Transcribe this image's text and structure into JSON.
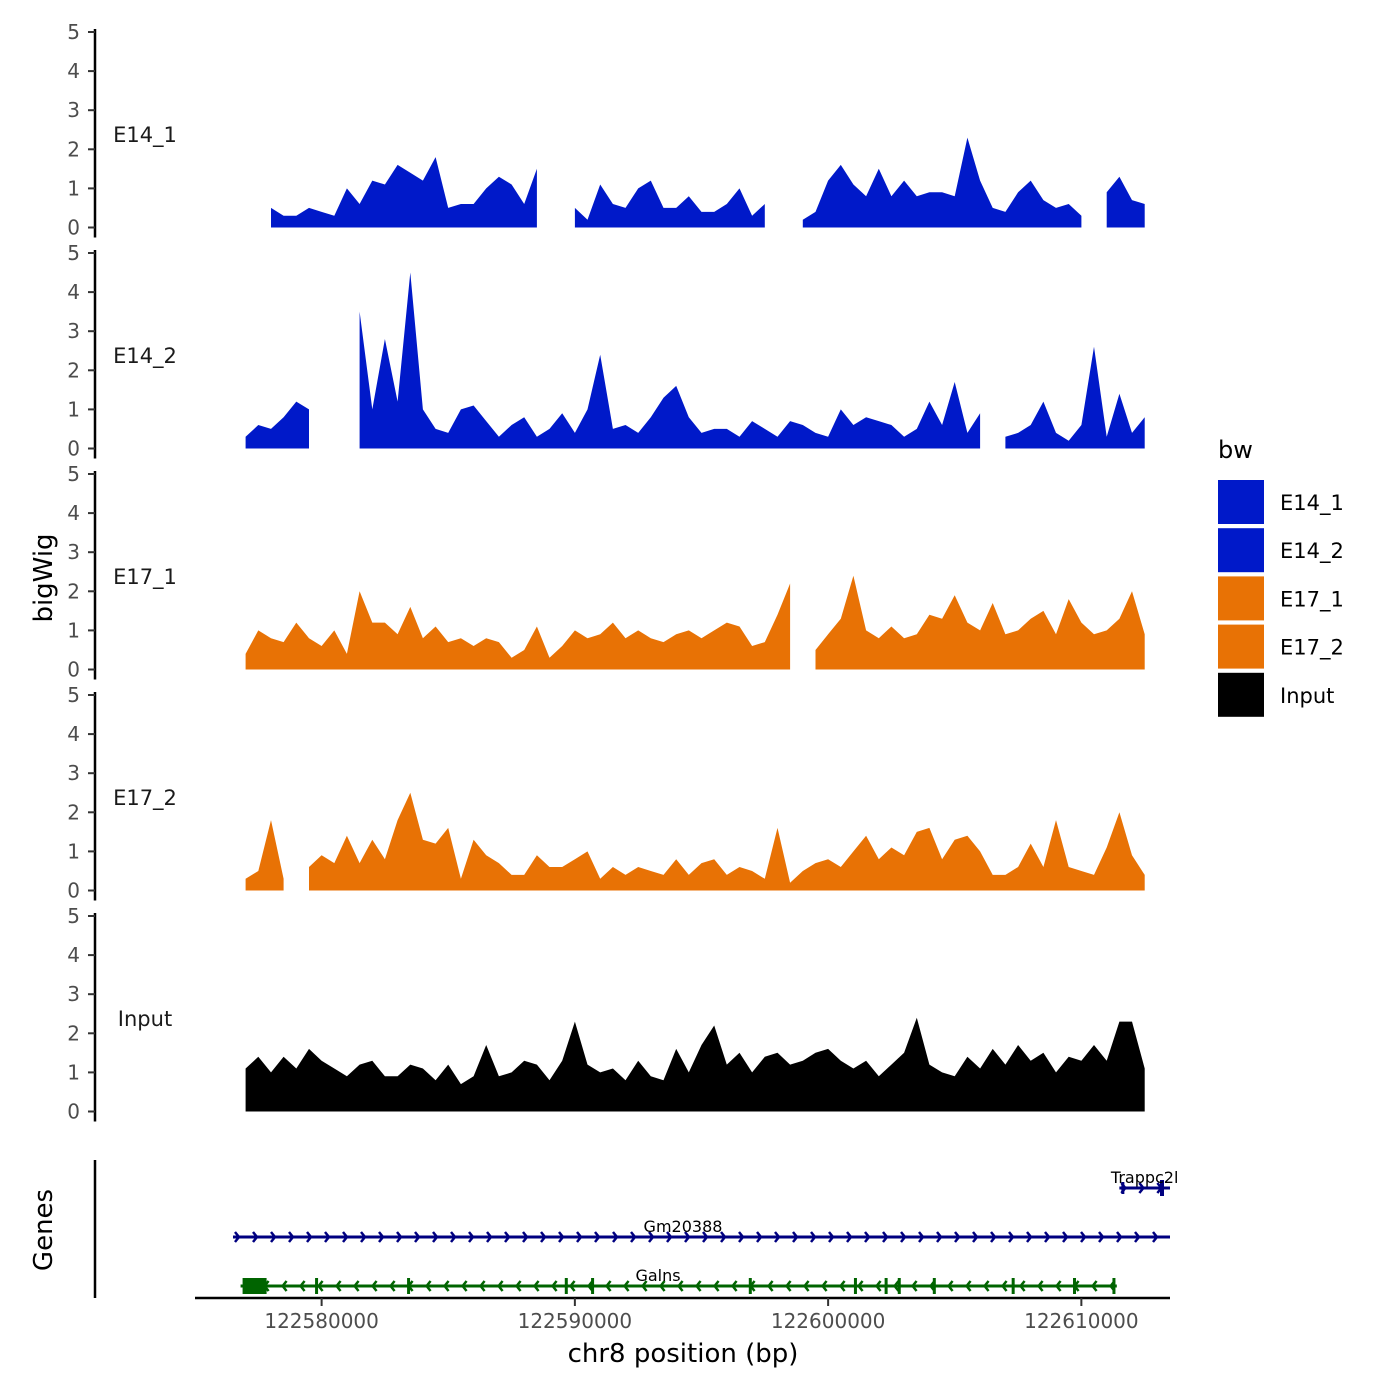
{
  "chart_data": {
    "type": "area",
    "xlabel": "chr8 position (bp)",
    "ylabel": "bigWig",
    "genes_label": "Genes",
    "xlim": [
      122575000,
      122613500
    ],
    "ylim": [
      0,
      5
    ],
    "yticks": [
      "0",
      "1",
      "2",
      "3",
      "4",
      "5"
    ],
    "xticks": [
      {
        "value": 122580000,
        "label": "122580000"
      },
      {
        "value": 122590000,
        "label": "122590000"
      },
      {
        "value": 122600000,
        "label": "122600000"
      },
      {
        "value": 122610000,
        "label": "122610000"
      }
    ],
    "x": [
      122577000,
      122577500,
      122578000,
      122578500,
      122579000,
      122579500,
      122580000,
      122580500,
      122581000,
      122581500,
      122582000,
      122582500,
      122583000,
      122583500,
      122584000,
      122584500,
      122585000,
      122585500,
      122586000,
      122586500,
      122587000,
      122587500,
      122588000,
      122588500,
      122589000,
      122589500,
      122590000,
      122590500,
      122591000,
      122591500,
      122592000,
      122592500,
      122593000,
      122593500,
      122594000,
      122594500,
      122595000,
      122595500,
      122596000,
      122596500,
      122597000,
      122597500,
      122598000,
      122598500,
      122599000,
      122599500,
      122600000,
      122600500,
      122601000,
      122601500,
      122602000,
      122602500,
      122603000,
      122603500,
      122604000,
      122604500,
      122605000,
      122605500,
      122606000,
      122606500,
      122607000,
      122607500,
      122608000,
      122608500,
      122609000,
      122609500,
      122610000,
      122610500,
      122611000,
      122611500,
      122612000,
      122612500
    ],
    "legend": {
      "title": "bw",
      "entries": [
        {
          "label": "E14_1",
          "color": "#0019c9"
        },
        {
          "label": "E14_2",
          "color": "#0019c9"
        },
        {
          "label": "E17_1",
          "color": "#e87205"
        },
        {
          "label": "E17_2",
          "color": "#e87205"
        },
        {
          "label": "Input",
          "color": "#000000"
        }
      ]
    },
    "series": [
      {
        "name": "E14_1",
        "color": "#0019c9",
        "values": [
          null,
          null,
          0.5,
          0.3,
          0.3,
          0.5,
          0.4,
          0.3,
          1.0,
          0.6,
          1.2,
          1.1,
          1.6,
          1.4,
          1.2,
          1.8,
          0.5,
          0.6,
          0.6,
          1.0,
          1.3,
          1.1,
          0.6,
          1.5,
          null,
          null,
          0.5,
          0.2,
          1.1,
          0.6,
          0.5,
          1.0,
          1.2,
          0.5,
          0.5,
          0.8,
          0.4,
          0.4,
          0.6,
          1.0,
          0.3,
          0.6,
          null,
          null,
          0.2,
          0.4,
          1.2,
          1.6,
          1.1,
          0.8,
          1.5,
          0.8,
          1.2,
          0.8,
          0.9,
          0.9,
          0.8,
          2.3,
          1.2,
          0.5,
          0.4,
          0.9,
          1.2,
          0.7,
          0.5,
          0.6,
          0.3,
          null,
          0.9,
          1.3,
          0.7,
          0.6
        ]
      },
      {
        "name": "E14_2",
        "color": "#0019c9",
        "values": [
          0.3,
          0.6,
          0.5,
          0.8,
          1.2,
          1.0,
          null,
          null,
          null,
          3.5,
          1.0,
          2.8,
          1.2,
          4.5,
          1.0,
          0.5,
          0.4,
          1.0,
          1.1,
          0.7,
          0.3,
          0.6,
          0.8,
          0.3,
          0.5,
          0.9,
          0.4,
          1.0,
          2.4,
          0.5,
          0.6,
          0.4,
          0.8,
          1.3,
          1.6,
          0.8,
          0.4,
          0.5,
          0.5,
          0.3,
          0.7,
          0.5,
          0.3,
          0.7,
          0.6,
          0.4,
          0.3,
          1.0,
          0.6,
          0.8,
          0.7,
          0.6,
          0.3,
          0.5,
          1.2,
          0.6,
          1.7,
          0.4,
          0.9,
          null,
          0.3,
          0.4,
          0.6,
          1.2,
          0.4,
          0.2,
          0.6,
          2.6,
          0.3,
          1.4,
          0.4,
          0.8
        ]
      },
      {
        "name": "E17_1",
        "color": "#e87205",
        "values": [
          0.4,
          1.0,
          0.8,
          0.7,
          1.2,
          0.8,
          0.6,
          1.0,
          0.4,
          2.0,
          1.2,
          1.2,
          0.9,
          1.6,
          0.8,
          1.1,
          0.7,
          0.8,
          0.6,
          0.8,
          0.7,
          0.3,
          0.5,
          1.1,
          0.3,
          0.6,
          1.0,
          0.8,
          0.9,
          1.2,
          0.8,
          1.0,
          0.8,
          0.7,
          0.9,
          1.0,
          0.8,
          1.0,
          1.2,
          1.1,
          0.6,
          0.7,
          1.4,
          2.2,
          null,
          0.5,
          0.9,
          1.3,
          2.4,
          1.0,
          0.8,
          1.1,
          0.8,
          0.9,
          1.4,
          1.3,
          1.9,
          1.2,
          1.0,
          1.7,
          0.9,
          1.0,
          1.3,
          1.5,
          0.9,
          1.8,
          1.2,
          0.9,
          1.0,
          1.3,
          2.0,
          0.9
        ]
      },
      {
        "name": "E17_2",
        "color": "#e87205",
        "values": [
          0.3,
          0.5,
          1.8,
          0.3,
          null,
          0.6,
          0.9,
          0.7,
          1.4,
          0.7,
          1.3,
          0.8,
          1.8,
          2.5,
          1.3,
          1.2,
          1.6,
          0.3,
          1.3,
          0.9,
          0.7,
          0.4,
          0.4,
          0.9,
          0.6,
          0.6,
          0.8,
          1.0,
          0.3,
          0.6,
          0.4,
          0.6,
          0.5,
          0.4,
          0.8,
          0.4,
          0.7,
          0.8,
          0.4,
          0.6,
          0.5,
          0.3,
          1.6,
          0.2,
          0.5,
          0.7,
          0.8,
          0.6,
          1.0,
          1.4,
          0.8,
          1.1,
          0.9,
          1.5,
          1.6,
          0.8,
          1.3,
          1.4,
          1.0,
          0.4,
          0.4,
          0.6,
          1.2,
          0.6,
          1.8,
          0.6,
          0.5,
          0.4,
          1.1,
          2.0,
          0.9,
          0.4
        ]
      },
      {
        "name": "Input",
        "color": "#000000",
        "values": [
          1.1,
          1.4,
          1.0,
          1.4,
          1.1,
          1.6,
          1.3,
          1.1,
          0.9,
          1.2,
          1.3,
          0.9,
          0.9,
          1.2,
          1.1,
          0.8,
          1.2,
          0.7,
          0.9,
          1.7,
          0.9,
          1.0,
          1.3,
          1.2,
          0.8,
          1.3,
          2.3,
          1.2,
          1.0,
          1.1,
          0.8,
          1.3,
          0.9,
          0.8,
          1.6,
          1.0,
          1.7,
          2.2,
          1.2,
          1.5,
          1.0,
          1.4,
          1.5,
          1.2,
          1.3,
          1.5,
          1.6,
          1.3,
          1.1,
          1.3,
          0.9,
          1.2,
          1.5,
          2.4,
          1.2,
          1.0,
          0.9,
          1.4,
          1.1,
          1.6,
          1.2,
          1.7,
          1.3,
          1.5,
          1.0,
          1.4,
          1.3,
          1.7,
          1.3,
          2.3,
          2.3,
          1.1
        ]
      }
    ],
    "genes": [
      {
        "name": "Trappc2l",
        "strand": "+",
        "start": 122611500,
        "end": 122613500,
        "color": "#000080",
        "row": 0
      },
      {
        "name": "Gm20388",
        "strand": "+",
        "start": 122576500,
        "end": 122613500,
        "color": "#000080",
        "row": 1
      },
      {
        "name": "Galns",
        "strand": "-",
        "start": 122576800,
        "end": 122611400,
        "color": "#006400",
        "row": 2
      }
    ]
  }
}
